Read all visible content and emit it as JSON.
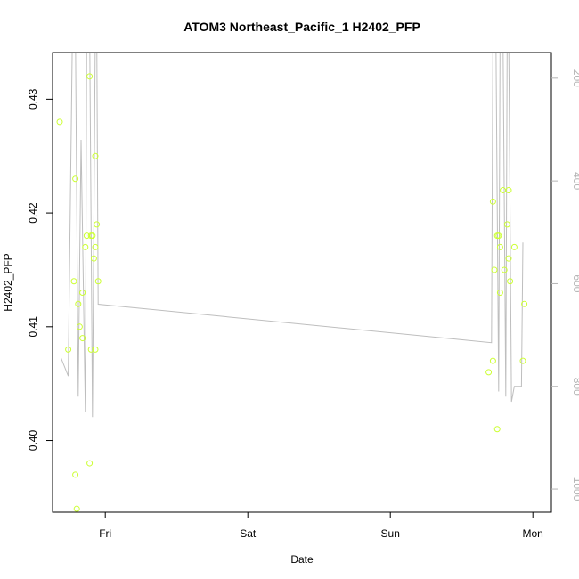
{
  "chart_data": {
    "type": "scatter",
    "title": "ATOM3 Northeast_Pacific_1 H2402_PFP",
    "xlabel": "Date",
    "ylabel": "H2402_PFP",
    "x_ticks": [
      {
        "label": "Fri",
        "day": 1.0
      },
      {
        "label": "Sat",
        "day": 2.0
      },
      {
        "label": "Sun",
        "day": 3.0
      },
      {
        "label": "Mon",
        "day": 4.0
      }
    ],
    "xlim": [
      0.63,
      4.13
    ],
    "ylim": [
      0.3937,
      0.4341
    ],
    "y_ticks": [
      0.4,
      0.41,
      0.42,
      0.43
    ],
    "y_tick_labels": [
      "0.40",
      "0.41",
      "0.42",
      "0.43"
    ],
    "y2lim": [
      1045,
      150
    ],
    "y2_ticks": [
      200,
      400,
      600,
      800,
      1000
    ],
    "y2_tick_labels": [
      "200",
      "400",
      "600",
      "800",
      "1000"
    ],
    "grid": false,
    "colors": {
      "points": "#ccff33",
      "line": "#bebebe",
      "right_axis": "#b4b4b4",
      "frame": "#000000"
    },
    "series": [
      {
        "values": [
          [
            0.68,
            0.428
          ],
          [
            0.74,
            0.408
          ],
          [
            0.78,
            0.414
          ],
          [
            0.79,
            0.397
          ],
          [
            0.79,
            0.423
          ],
          [
            0.8,
            0.394
          ],
          [
            0.81,
            0.412
          ],
          [
            0.82,
            0.41
          ],
          [
            0.84,
            0.413
          ],
          [
            0.84,
            0.409
          ],
          [
            0.86,
            0.417
          ],
          [
            0.87,
            0.418
          ],
          [
            0.89,
            0.432
          ],
          [
            0.89,
            0.398
          ],
          [
            0.9,
            0.408
          ],
          [
            0.9,
            0.418
          ],
          [
            0.91,
            0.418
          ],
          [
            0.92,
            0.416
          ],
          [
            0.93,
            0.408
          ],
          [
            0.93,
            0.417
          ],
          [
            0.93,
            0.425
          ],
          [
            0.94,
            0.419
          ],
          [
            0.95,
            0.414
          ],
          [
            3.69,
            0.406
          ],
          [
            3.72,
            0.407
          ],
          [
            3.72,
            0.421
          ],
          [
            3.73,
            0.415
          ],
          [
            3.75,
            0.401
          ],
          [
            3.75,
            0.418
          ],
          [
            3.76,
            0.418
          ],
          [
            3.77,
            0.413
          ],
          [
            3.77,
            0.417
          ],
          [
            3.79,
            0.422
          ],
          [
            3.8,
            0.415
          ],
          [
            3.82,
            0.419
          ],
          [
            3.83,
            0.422
          ],
          [
            3.83,
            0.416
          ],
          [
            3.84,
            0.414
          ],
          [
            3.87,
            0.417
          ],
          [
            3.93,
            0.407
          ],
          [
            3.94,
            0.412
          ]
        ]
      },
      {
        "axis": "right",
        "values": [
          [
            0.69,
            745
          ],
          [
            0.74,
            780
          ],
          [
            0.77,
            100
          ],
          [
            0.79,
            90
          ],
          [
            0.81,
            820
          ],
          [
            0.83,
            320
          ],
          [
            0.86,
            850
          ],
          [
            0.87,
            100
          ],
          [
            0.89,
            90
          ],
          [
            0.91,
            860
          ],
          [
            0.93,
            110
          ],
          [
            0.94,
            90
          ],
          [
            0.95,
            640
          ],
          [
            3.71,
            715
          ],
          [
            3.72,
            100
          ],
          [
            3.74,
            90
          ],
          [
            3.76,
            810
          ],
          [
            3.77,
            110
          ],
          [
            3.79,
            100
          ],
          [
            3.81,
            820
          ],
          [
            3.82,
            100
          ],
          [
            3.83,
            95
          ],
          [
            3.85,
            830
          ],
          [
            3.87,
            800
          ],
          [
            3.92,
            800
          ],
          [
            3.93,
            520
          ]
        ]
      }
    ]
  }
}
